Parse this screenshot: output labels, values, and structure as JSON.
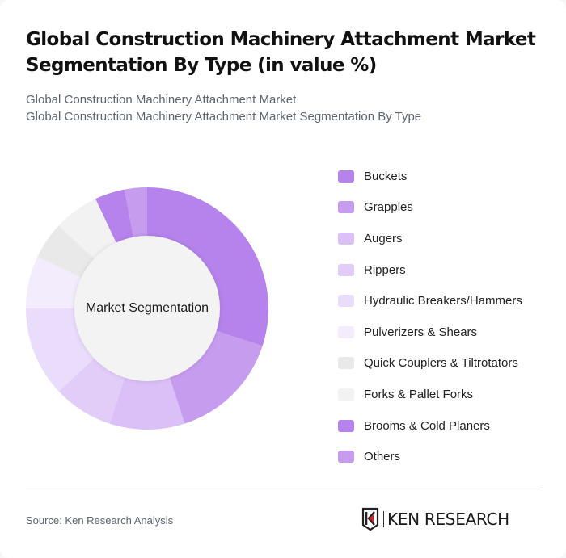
{
  "header": {
    "title": "Global Construction Machinery Attachment Market Segmentation By Type (in value %)",
    "subtitle_line1": "Global Construction Machinery Attachment Market",
    "subtitle_line2": "Global Construction Machinery Attachment Market Segmentation By Type"
  },
  "chart": {
    "center_label": "Market Segmentation"
  },
  "footer": {
    "source": "Source: Ken Research Analysis",
    "logo_text": "KEN RESEARCH"
  },
  "chart_data": {
    "type": "pie",
    "subtype": "donut",
    "title": "Global Construction Machinery Attachment Market Segmentation By Type (in value %)",
    "center_label": "Market Segmentation",
    "legend_position": "right",
    "categories": [
      "Buckets",
      "Grapples",
      "Augers",
      "Rippers",
      "Hydraulic Breakers/Hammers",
      "Pulverizers & Shears",
      "Quick Couplers & Tiltrotators",
      "Forks & Pallet Forks",
      "Brooms & Cold Planers",
      "Others"
    ],
    "values": [
      30,
      15,
      10,
      8,
      12,
      7,
      5,
      6,
      4,
      3
    ],
    "colors": [
      "#b583eb",
      "#c69cef",
      "#dbbff7",
      "#e2cdf9",
      "#eadcfb",
      "#f3ecfd",
      "#e9e9e9",
      "#f2f2f2",
      "#b583eb",
      "#c69cef"
    ],
    "unit": "%"
  }
}
